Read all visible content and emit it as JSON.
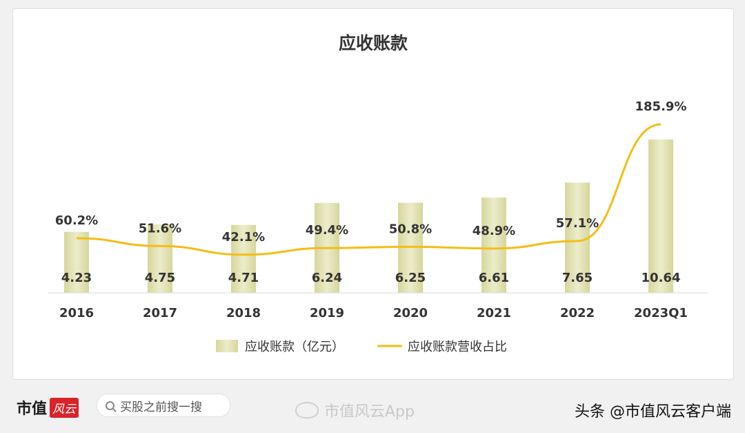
{
  "chart_data": {
    "type": "bar",
    "title": "应收账款",
    "categories": [
      "2016",
      "2017",
      "2018",
      "2019",
      "2020",
      "2021",
      "2022",
      "2023Q1"
    ],
    "series": [
      {
        "name": "应收账款（亿元）",
        "type": "bar",
        "values": [
          4.23,
          4.75,
          4.71,
          6.24,
          6.25,
          6.61,
          7.65,
          10.64
        ],
        "labels": [
          "4.23",
          "4.75",
          "4.71",
          "6.24",
          "6.25",
          "6.61",
          "7.65",
          "10.64"
        ]
      },
      {
        "name": "应收账款营收占比",
        "type": "line",
        "values": [
          60.2,
          51.6,
          42.1,
          49.4,
          50.8,
          48.9,
          57.1,
          185.9
        ],
        "labels": [
          "60.2%",
          "51.6%",
          "42.1%",
          "49.4%",
          "50.8%",
          "48.9%",
          "57.1%",
          "185.9%"
        ]
      }
    ],
    "ylim": [
      0,
      13.9
    ],
    "y2lim": [
      0,
      221
    ],
    "legend": "bottom",
    "grid": false,
    "colors": {
      "bar": "#e4e4b4",
      "line": "#f5bd13",
      "axis": "#d9d9d9",
      "text": "#333333"
    }
  },
  "footer": {
    "brand": "市值",
    "brand_seal": "风云",
    "search_placeholder": "买股之前搜一搜",
    "weibo_text": "市值风云App",
    "toutiao_text": "头条 @市值风云客户端"
  }
}
